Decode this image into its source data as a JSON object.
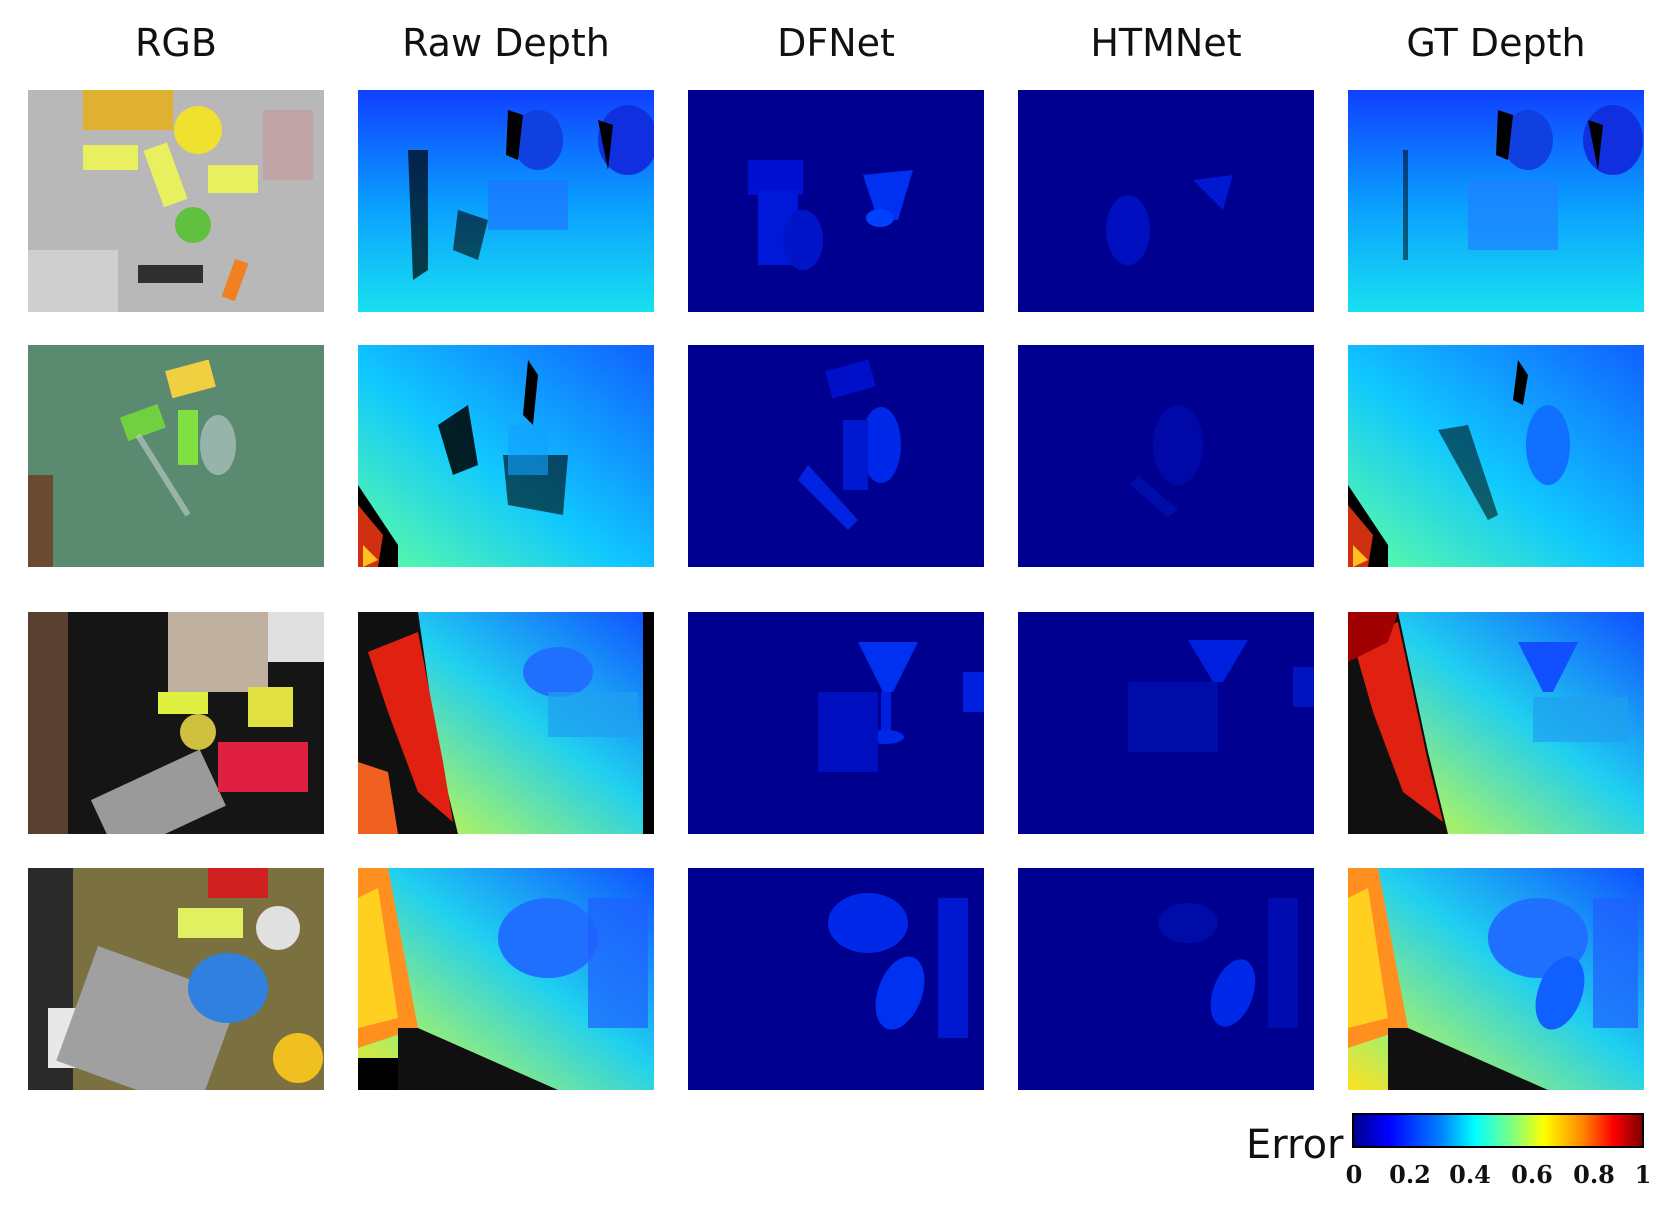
{
  "columns": [
    "RGB",
    "Raw Depth",
    "DFNet",
    "HTMNet",
    "GT Depth"
  ],
  "colorbar": {
    "label": "Error",
    "ticks": [
      "0",
      "0.2",
      "0.4",
      "0.6",
      "0.8",
      "1"
    ],
    "colors": [
      "#00008f",
      "#0000ff",
      "#0080ff",
      "#00ffff",
      "#ffff00",
      "#ff0000",
      "#800000"
    ]
  },
  "rows": 4
}
